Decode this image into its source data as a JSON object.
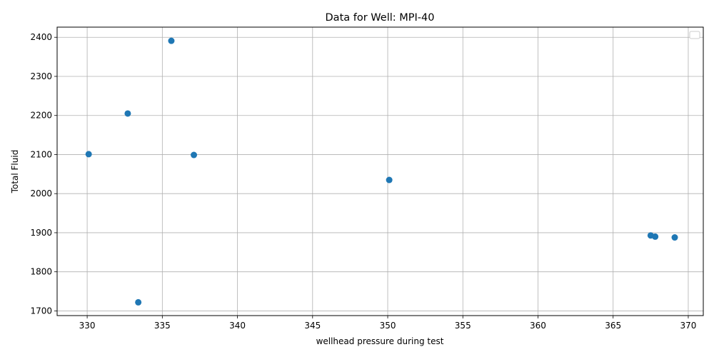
{
  "chart_data": {
    "type": "scatter",
    "title": "Data for Well: MPI-40",
    "xlabel": "wellhead pressure during test",
    "ylabel": "Total Fluid",
    "xlim": [
      328.0,
      371.0
    ],
    "ylim": [
      1688,
      2426
    ],
    "xticks": [
      330,
      335,
      340,
      345,
      350,
      355,
      360,
      365,
      370
    ],
    "yticks": [
      1700,
      1800,
      1900,
      2000,
      2100,
      2200,
      2300,
      2400
    ],
    "grid": true,
    "legend": "top-right",
    "marker_color": "#1f77b4",
    "points": [
      {
        "x": 330.1,
        "y": 2101
      },
      {
        "x": 332.7,
        "y": 2205
      },
      {
        "x": 333.4,
        "y": 1722
      },
      {
        "x": 335.6,
        "y": 2391
      },
      {
        "x": 337.1,
        "y": 2099
      },
      {
        "x": 350.1,
        "y": 2035
      },
      {
        "x": 367.5,
        "y": 1893
      },
      {
        "x": 367.8,
        "y": 1890
      },
      {
        "x": 369.1,
        "y": 1888
      }
    ]
  }
}
